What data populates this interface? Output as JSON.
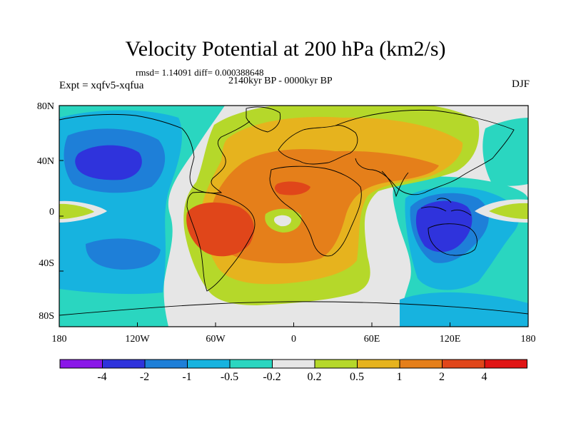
{
  "header": {
    "title": "Velocity Potential at 200 hPa (km2/s)",
    "stats": "rmsd= 1.14091 diff= 0.000388648",
    "experiment": "Expt = xqfv5-xqfua",
    "period": "2140kyr BP - 0000kyr BP",
    "season": "DJF"
  },
  "axes": {
    "lat_labels": [
      "80N",
      "40N",
      "0",
      "40S",
      "80S"
    ],
    "lon_labels": [
      "180",
      "120W",
      "60W",
      "0",
      "60E",
      "120E",
      "180"
    ]
  },
  "colorbar": {
    "labels": [
      "-4",
      "-2",
      "-1",
      "-0.5",
      "-0.2",
      "0.2",
      "0.5",
      "1",
      "2",
      "4"
    ],
    "colors": [
      "#8a17e8",
      "#2f33dc",
      "#1e7fd8",
      "#17b3df",
      "#2ad6c0",
      "#e6e6e6",
      "#b5d82a",
      "#e6b31e",
      "#e57f1a",
      "#e0461a",
      "#e01414"
    ]
  },
  "levels": [
    {
      "name": "blue-neg-light",
      "color": "#17b3df"
    },
    {
      "name": "blue-neg",
      "color": "#1e7fd8"
    },
    {
      "name": "blue-neg-deep",
      "color": "#2f33dc"
    },
    {
      "name": "teal-neg",
      "color": "#2ad6c0"
    },
    {
      "name": "pos-low",
      "color": "#b5d82a"
    },
    {
      "name": "pos-mid",
      "color": "#e6b31e"
    },
    {
      "name": "pos-high",
      "color": "#e57f1a"
    },
    {
      "name": "pos-max",
      "color": "#e0461a"
    }
  ]
}
